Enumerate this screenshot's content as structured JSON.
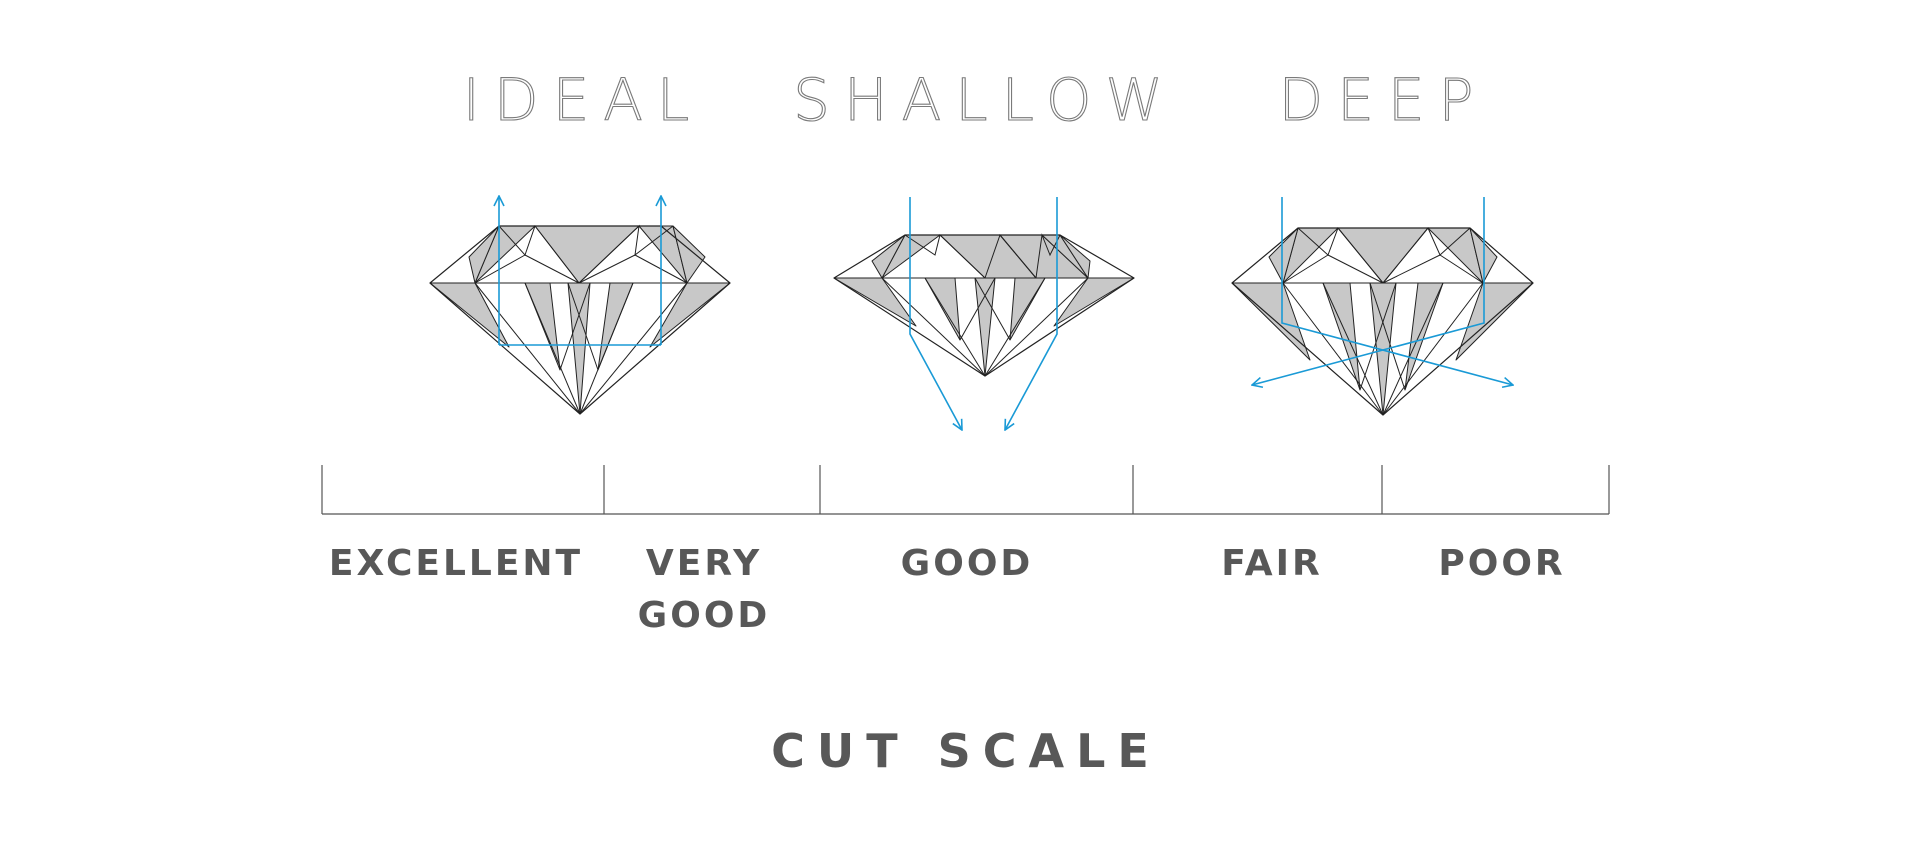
{
  "colors": {
    "background": "#ffffff",
    "text": "#585858",
    "light_ray": "#1a9ad6",
    "facet_fill": "#c8c8c8",
    "outline": "#222222"
  },
  "diamonds": [
    {
      "label": "IDEAL",
      "light_path": "reflected up through the table"
    },
    {
      "label": "SHALLOW",
      "light_path": "escapes down through the pavilion"
    },
    {
      "label": "DEEP",
      "light_path": "escapes out the sides"
    }
  ],
  "scale": {
    "title": "CUT SCALE",
    "grades": [
      {
        "line1": "EXCELLENT",
        "line2": ""
      },
      {
        "line1": "VERY",
        "line2": "GOOD"
      },
      {
        "line1": "GOOD",
        "line2": ""
      },
      {
        "line1": "FAIR",
        "line2": ""
      },
      {
        "line1": "POOR",
        "line2": ""
      }
    ]
  }
}
